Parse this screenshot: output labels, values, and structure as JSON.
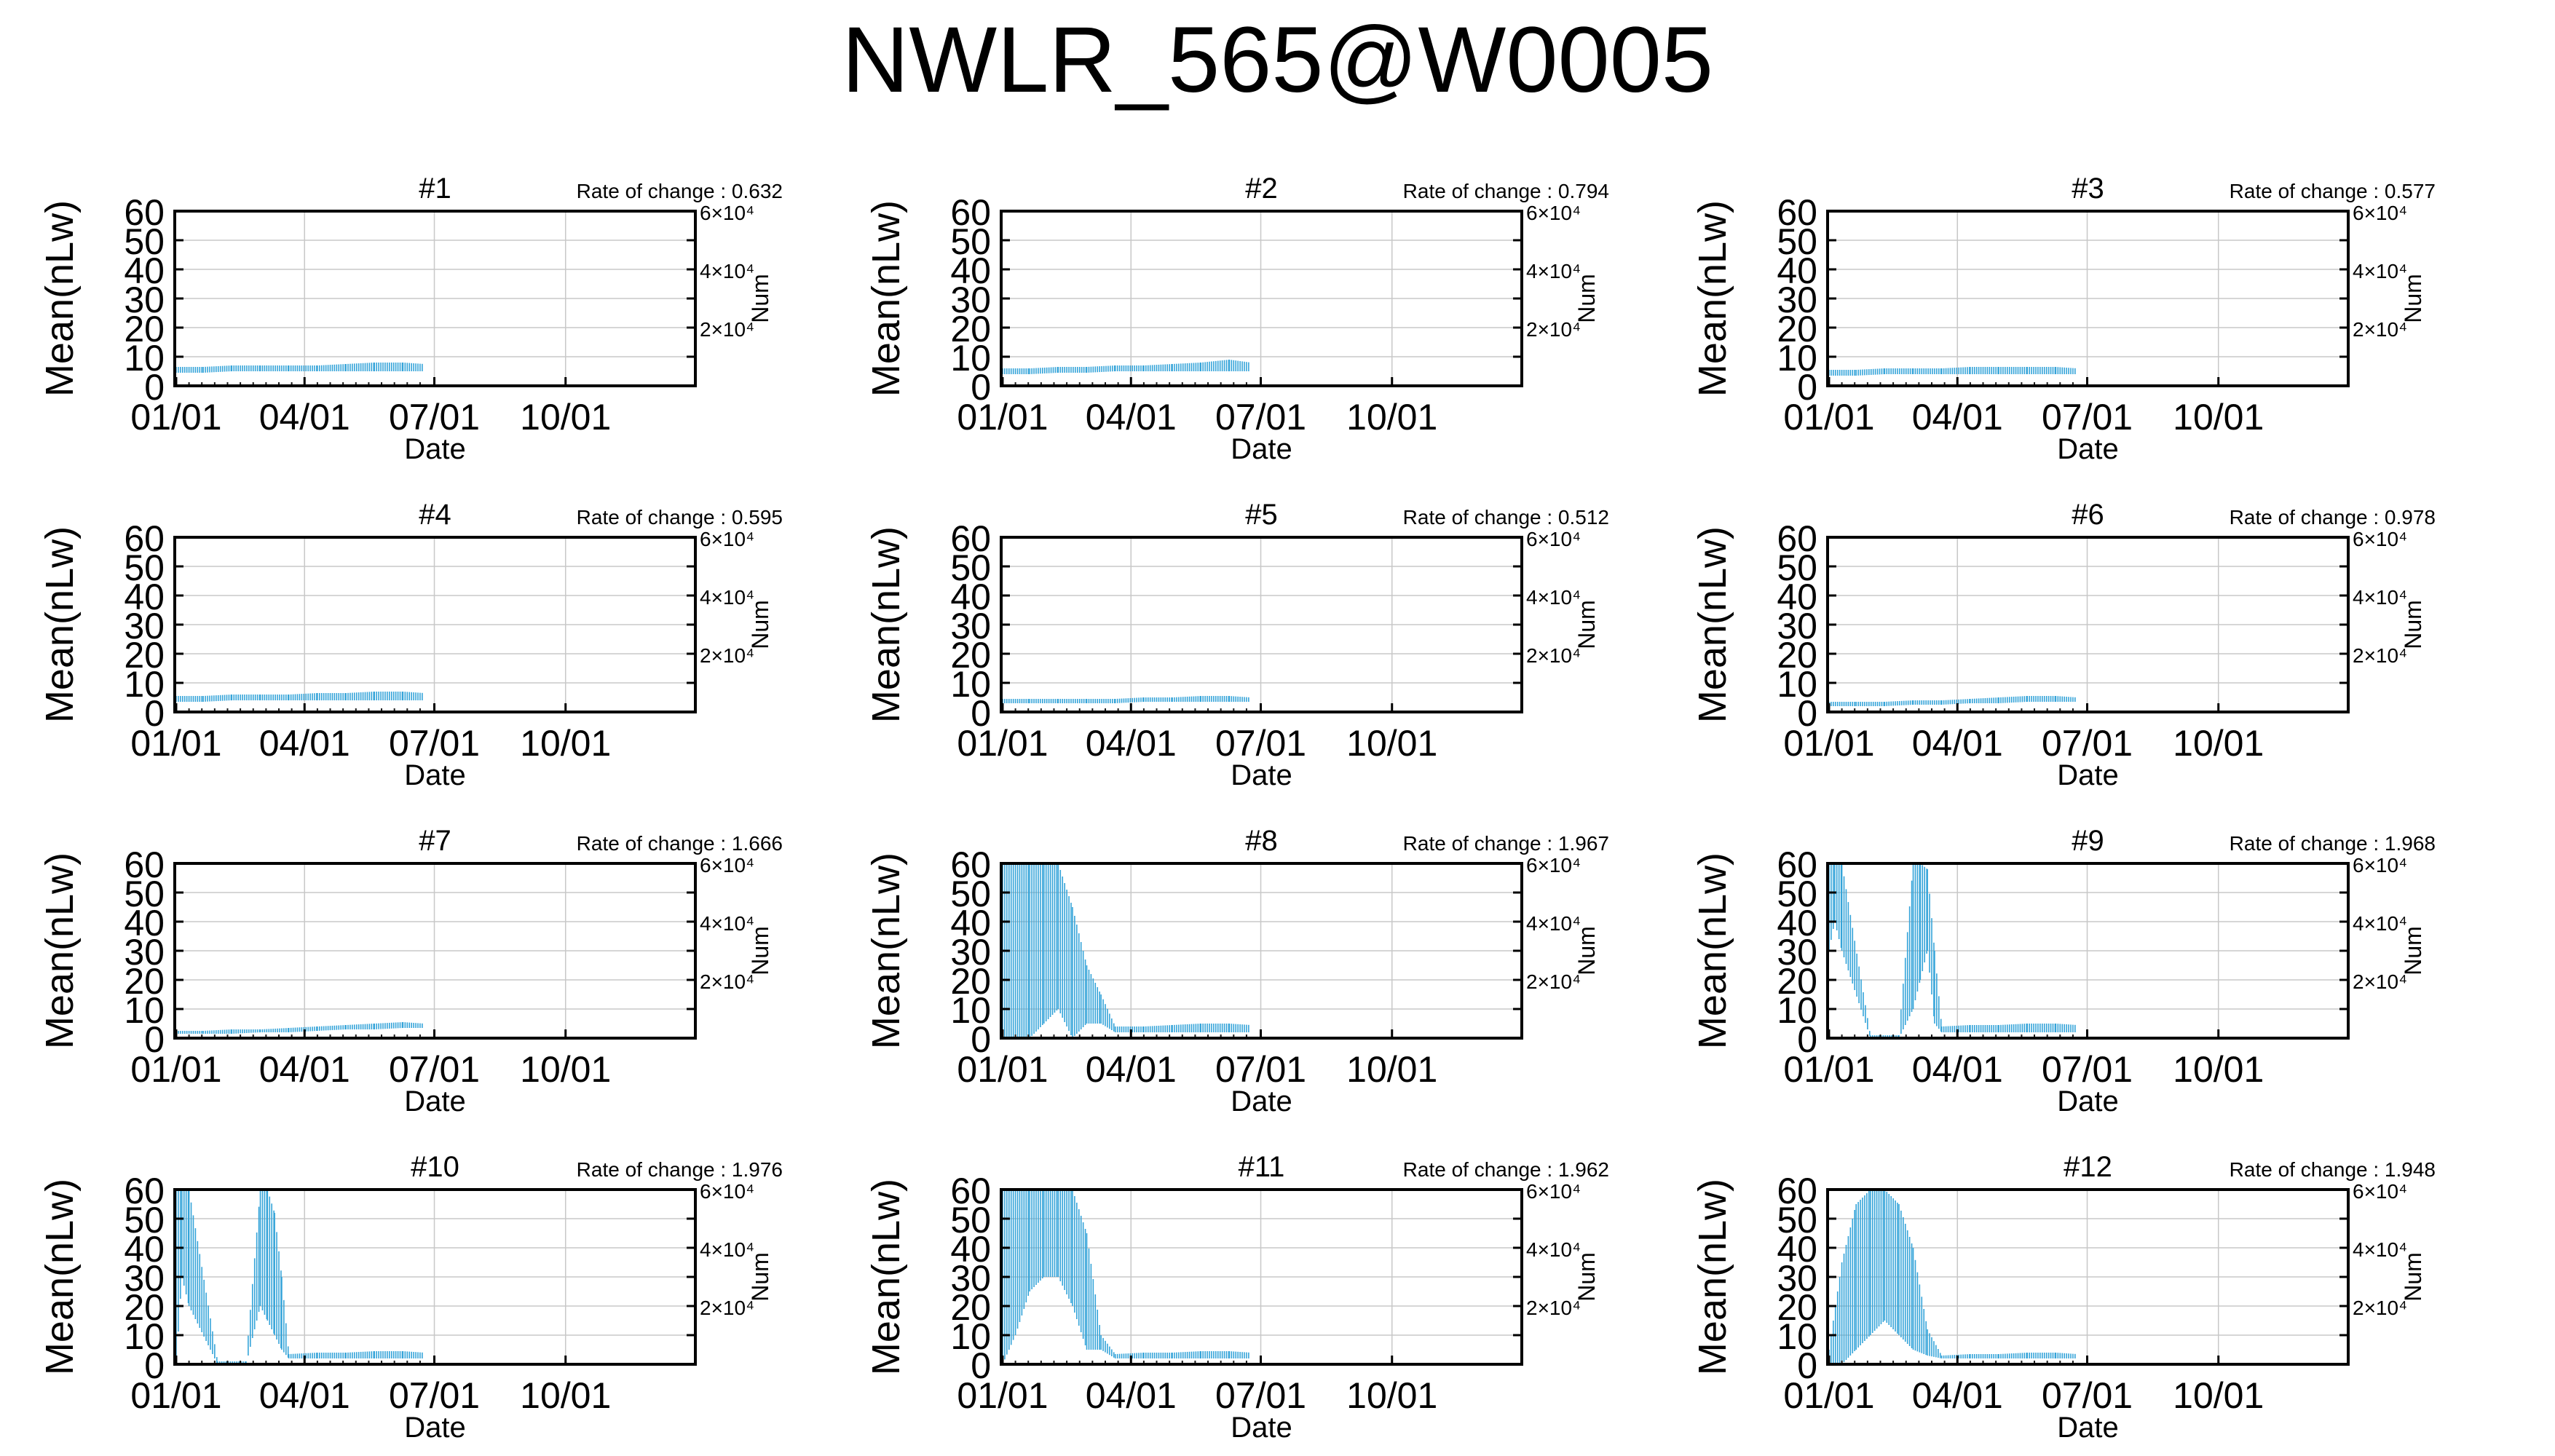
{
  "title": "NWLR_565@W0005",
  "colors": {
    "series": "#35a4d9",
    "marks": "#1a1a1a",
    "grid": "#c8c8c8",
    "axis": "#000000"
  },
  "chart_data": [
    {
      "type": "line",
      "title": "#1",
      "rate_label": "Rate of change : 0.632",
      "xlabel": "Date",
      "ylabel": "Mean(nLw)",
      "y2label": "Num",
      "xticks": [
        "01/01",
        "04/01",
        "07/01",
        "10/01"
      ],
      "yticks": [
        0,
        10,
        20,
        30,
        40,
        50,
        60
      ],
      "ylim": [
        0,
        60
      ],
      "y2ticks": [
        "2×10⁴",
        "4×10⁴",
        "6×10⁴"
      ],
      "y2lim": [
        0,
        60000
      ],
      "grid": true,
      "series": [
        {
          "values": [
            [
              1,
              4.5,
              6.5
            ],
            [
              20,
              4.5,
              6.5
            ],
            [
              40,
              5,
              7
            ],
            [
              60,
              5,
              7
            ],
            [
              80,
              5,
              7
            ],
            [
              100,
              5,
              7
            ],
            [
              120,
              5,
              7.5
            ],
            [
              140,
              5,
              8
            ],
            [
              160,
              5,
              8
            ],
            [
              175,
              5,
              7.5
            ]
          ]
        }
      ]
    },
    {
      "type": "line",
      "title": "#2",
      "rate_label": "Rate of change : 0.794",
      "xlabel": "Date",
      "ylabel": "Mean(nLw)",
      "y2label": "Num",
      "xticks": [
        "01/01",
        "04/01",
        "07/01",
        "10/01"
      ],
      "yticks": [
        0,
        10,
        20,
        30,
        40,
        50,
        60
      ],
      "ylim": [
        0,
        60
      ],
      "y2ticks": [
        "2×10⁴",
        "4×10⁴",
        "6×10⁴"
      ],
      "y2lim": [
        0,
        60000
      ],
      "grid": true,
      "series": [
        {
          "values": [
            [
              1,
              4,
              6
            ],
            [
              20,
              4,
              6
            ],
            [
              40,
              4.5,
              6.5
            ],
            [
              60,
              4.5,
              6.5
            ],
            [
              80,
              5,
              7
            ],
            [
              100,
              5,
              7
            ],
            [
              120,
              5,
              7.5
            ],
            [
              140,
              5,
              8
            ],
            [
              160,
              5,
              9
            ],
            [
              175,
              5,
              8
            ]
          ]
        }
      ]
    },
    {
      "type": "line",
      "title": "#3",
      "rate_label": "Rate of change : 0.577",
      "xlabel": "Date",
      "ylabel": "Mean(nLw)",
      "y2label": "Num",
      "xticks": [
        "01/01",
        "04/01",
        "07/01",
        "10/01"
      ],
      "yticks": [
        0,
        10,
        20,
        30,
        40,
        50,
        60
      ],
      "ylim": [
        0,
        60
      ],
      "y2ticks": [
        "2×10⁴",
        "4×10⁴",
        "6×10⁴"
      ],
      "y2lim": [
        0,
        60000
      ],
      "grid": true,
      "series": [
        {
          "values": [
            [
              1,
              3.5,
              5.5
            ],
            [
              20,
              3.5,
              5.5
            ],
            [
              40,
              4,
              6
            ],
            [
              60,
              4,
              6
            ],
            [
              80,
              4,
              6
            ],
            [
              100,
              4,
              6.5
            ],
            [
              120,
              4,
              6.5
            ],
            [
              140,
              4,
              6.5
            ],
            [
              160,
              4,
              6.5
            ],
            [
              175,
              4,
              6
            ]
          ]
        }
      ]
    },
    {
      "type": "line",
      "title": "#4",
      "rate_label": "Rate of change : 0.595",
      "xlabel": "Date",
      "ylabel": "Mean(nLw)",
      "y2label": "Num",
      "xticks": [
        "01/01",
        "04/01",
        "07/01",
        "10/01"
      ],
      "yticks": [
        0,
        10,
        20,
        30,
        40,
        50,
        60
      ],
      "ylim": [
        0,
        60
      ],
      "y2ticks": [
        "2×10⁴",
        "4×10⁴",
        "6×10⁴"
      ],
      "y2lim": [
        0,
        60000
      ],
      "grid": true,
      "series": [
        {
          "values": [
            [
              1,
              3.5,
              5.5
            ],
            [
              20,
              3.5,
              5.5
            ],
            [
              40,
              4,
              6
            ],
            [
              60,
              4,
              6
            ],
            [
              80,
              4,
              6
            ],
            [
              100,
              4,
              6.5
            ],
            [
              120,
              4,
              6.5
            ],
            [
              140,
              4,
              7
            ],
            [
              160,
              4,
              7
            ],
            [
              175,
              4,
              6.5
            ]
          ]
        }
      ]
    },
    {
      "type": "line",
      "title": "#5",
      "rate_label": "Rate of change : 0.512",
      "xlabel": "Date",
      "ylabel": "Mean(nLw)",
      "y2label": "Num",
      "xticks": [
        "01/01",
        "04/01",
        "07/01",
        "10/01"
      ],
      "yticks": [
        0,
        10,
        20,
        30,
        40,
        50,
        60
      ],
      "ylim": [
        0,
        60
      ],
      "y2ticks": [
        "2×10⁴",
        "4×10⁴",
        "6×10⁴"
      ],
      "y2lim": [
        0,
        60000
      ],
      "grid": true,
      "series": [
        {
          "values": [
            [
              1,
              3,
              4.5
            ],
            [
              20,
              3,
              4.5
            ],
            [
              40,
              3,
              4.5
            ],
            [
              60,
              3,
              4.5
            ],
            [
              80,
              3,
              4.5
            ],
            [
              100,
              3.5,
              5
            ],
            [
              120,
              3.5,
              5
            ],
            [
              140,
              3.5,
              5.5
            ],
            [
              160,
              3.5,
              5.5
            ],
            [
              175,
              3.5,
              5
            ]
          ]
        }
      ]
    },
    {
      "type": "line",
      "title": "#6",
      "rate_label": "Rate of change : 0.978",
      "xlabel": "Date",
      "ylabel": "Mean(nLw)",
      "y2label": "Num",
      "xticks": [
        "01/01",
        "04/01",
        "07/01",
        "10/01"
      ],
      "yticks": [
        0,
        10,
        20,
        30,
        40,
        50,
        60
      ],
      "ylim": [
        0,
        60
      ],
      "y2ticks": [
        "2×10⁴",
        "4×10⁴",
        "6×10⁴"
      ],
      "y2lim": [
        0,
        60000
      ],
      "grid": true,
      "series": [
        {
          "values": [
            [
              1,
              2,
              3.5
            ],
            [
              20,
              2,
              3.5
            ],
            [
              40,
              2,
              3.5
            ],
            [
              60,
              2.5,
              4
            ],
            [
              80,
              2.5,
              4
            ],
            [
              100,
              3,
              4.5
            ],
            [
              120,
              3,
              5
            ],
            [
              140,
              3.5,
              5.5
            ],
            [
              160,
              3.5,
              5.5
            ],
            [
              175,
              3.5,
              5
            ]
          ]
        }
      ]
    },
    {
      "type": "line",
      "title": "#7",
      "rate_label": "Rate of change : 1.666",
      "xlabel": "Date",
      "ylabel": "Mean(nLw)",
      "y2label": "Num",
      "xticks": [
        "01/01",
        "04/01",
        "07/01",
        "10/01"
      ],
      "yticks": [
        0,
        10,
        20,
        30,
        40,
        50,
        60
      ],
      "ylim": [
        0,
        60
      ],
      "y2ticks": [
        "2×10⁴",
        "4×10⁴",
        "6×10⁴"
      ],
      "y2lim": [
        0,
        60000
      ],
      "grid": true,
      "series": [
        {
          "values": [
            [
              1,
              1.5,
              2.5
            ],
            [
              20,
              1.5,
              2.5
            ],
            [
              40,
              1.5,
              3
            ],
            [
              60,
              2,
              3
            ],
            [
              80,
              2,
              3.5
            ],
            [
              100,
              2.5,
              4
            ],
            [
              120,
              3,
              4.5
            ],
            [
              140,
              3,
              5
            ],
            [
              160,
              3.5,
              5.5
            ],
            [
              175,
              3.5,
              5
            ]
          ]
        }
      ]
    },
    {
      "type": "line",
      "title": "#8",
      "rate_label": "Rate of change : 1.967",
      "xlabel": "Date",
      "ylabel": "Mean(nLw)",
      "y2label": "Num",
      "xticks": [
        "01/01",
        "04/01",
        "07/01",
        "10/01"
      ],
      "yticks": [
        0,
        10,
        20,
        30,
        40,
        50,
        60
      ],
      "ylim": [
        0,
        60
      ],
      "y2ticks": [
        "2×10⁴",
        "4×10⁴",
        "6×10⁴"
      ],
      "y2lim": [
        0,
        60000
      ],
      "grid": true,
      "series": [
        {
          "values": [
            [
              1,
              0,
              60
            ],
            [
              10,
              0,
              60
            ],
            [
              20,
              0,
              60
            ],
            [
              30,
              5,
              60
            ],
            [
              40,
              10,
              60
            ],
            [
              50,
              0,
              45
            ],
            [
              60,
              5,
              25
            ],
            [
              70,
              5,
              15
            ],
            [
              80,
              2,
              4
            ],
            [
              100,
              2,
              4
            ],
            [
              120,
              2,
              4.5
            ],
            [
              140,
              2,
              5
            ],
            [
              160,
              2,
              5
            ],
            [
              175,
              2,
              4.5
            ]
          ]
        }
      ]
    },
    {
      "type": "line",
      "title": "#9",
      "rate_label": "Rate of change : 1.968",
      "xlabel": "Date",
      "ylabel": "Mean(nLw)",
      "y2label": "Num",
      "xticks": [
        "01/01",
        "04/01",
        "07/01",
        "10/01"
      ],
      "yticks": [
        0,
        10,
        20,
        30,
        40,
        50,
        60
      ],
      "ylim": [
        0,
        60
      ],
      "y2ticks": [
        "2×10⁴",
        "4×10⁴",
        "6×10⁴"
      ],
      "y2lim": [
        0,
        60000
      ],
      "grid": true,
      "series": [
        {
          "values": [
            [
              1,
              30,
              60
            ],
            [
              5,
              40,
              60
            ],
            [
              10,
              30,
              60
            ],
            [
              30,
              0,
              1
            ],
            [
              50,
              0,
              1
            ],
            [
              60,
              10,
              60
            ],
            [
              65,
              20,
              60
            ],
            [
              70,
              30,
              58
            ],
            [
              75,
              5,
              30
            ],
            [
              80,
              2,
              4
            ],
            [
              100,
              2,
              4.5
            ],
            [
              120,
              2,
              4.5
            ],
            [
              140,
              2,
              5
            ],
            [
              160,
              2,
              5
            ],
            [
              175,
              2,
              4.5
            ]
          ]
        }
      ]
    },
    {
      "type": "line",
      "title": "#10",
      "rate_label": "Rate of change : 1.976",
      "xlabel": "Date",
      "ylabel": "Mean(nLw)",
      "y2label": "Num",
      "xticks": [
        "01/01",
        "04/01",
        "07/01",
        "10/01"
      ],
      "yticks": [
        0,
        10,
        20,
        30,
        40,
        50,
        60
      ],
      "ylim": [
        0,
        60
      ],
      "y2ticks": [
        "2×10⁴",
        "4×10⁴",
        "6×10⁴"
      ],
      "y2lim": [
        0,
        60000
      ],
      "grid": true,
      "series": [
        {
          "values": [
            [
              1,
              0,
              60
            ],
            [
              5,
              30,
              60
            ],
            [
              10,
              20,
              60
            ],
            [
              30,
              0,
              1
            ],
            [
              50,
              0,
              1
            ],
            [
              60,
              20,
              60
            ],
            [
              65,
              15,
              60
            ],
            [
              70,
              10,
              52
            ],
            [
              75,
              5,
              30
            ],
            [
              80,
              2,
              3.5
            ],
            [
              100,
              2,
              4
            ],
            [
              120,
              2,
              4
            ],
            [
              140,
              2,
              4.5
            ],
            [
              160,
              2,
              4.5
            ],
            [
              175,
              2,
              4
            ]
          ]
        }
      ]
    },
    {
      "type": "line",
      "title": "#11",
      "rate_label": "Rate of change : 1.962",
      "xlabel": "Date",
      "ylabel": "Mean(nLw)",
      "y2label": "Num",
      "xticks": [
        "01/01",
        "04/01",
        "07/01",
        "10/01"
      ],
      "yticks": [
        0,
        10,
        20,
        30,
        40,
        50,
        60
      ],
      "ylim": [
        0,
        60
      ],
      "y2ticks": [
        "2×10⁴",
        "4×10⁴",
        "6×10⁴"
      ],
      "y2lim": [
        0,
        60000
      ],
      "grid": true,
      "series": [
        {
          "values": [
            [
              1,
              0,
              60
            ],
            [
              10,
              10,
              60
            ],
            [
              20,
              25,
              60
            ],
            [
              30,
              30,
              60
            ],
            [
              40,
              30,
              60
            ],
            [
              50,
              20,
              60
            ],
            [
              60,
              5,
              45
            ],
            [
              70,
              5,
              10
            ],
            [
              80,
              2,
              3.5
            ],
            [
              100,
              2,
              4
            ],
            [
              120,
              2,
              4
            ],
            [
              140,
              2,
              4.5
            ],
            [
              160,
              2,
              4.5
            ],
            [
              175,
              2,
              4
            ]
          ]
        }
      ]
    },
    {
      "type": "line",
      "title": "#12",
      "rate_label": "Rate of change : 1.948",
      "xlabel": "Date",
      "ylabel": "Mean(nLw)",
      "y2label": "Num",
      "xticks": [
        "01/01",
        "04/01",
        "07/01",
        "10/01"
      ],
      "yticks": [
        0,
        10,
        20,
        30,
        40,
        50,
        60
      ],
      "ylim": [
        0,
        60
      ],
      "y2ticks": [
        "2×10⁴",
        "4×10⁴",
        "6×10⁴"
      ],
      "y2lim": [
        0,
        60000
      ],
      "grid": true,
      "series": [
        {
          "values": [
            [
              1,
              0,
              5
            ],
            [
              10,
              0,
              35
            ],
            [
              20,
              5,
              55
            ],
            [
              30,
              10,
              60
            ],
            [
              40,
              15,
              60
            ],
            [
              50,
              10,
              55
            ],
            [
              60,
              5,
              40
            ],
            [
              70,
              3,
              12
            ],
            [
              80,
              2,
              3
            ],
            [
              100,
              2,
              3.5
            ],
            [
              120,
              2,
              3.5
            ],
            [
              140,
              2,
              4
            ],
            [
              160,
              2,
              4
            ],
            [
              175,
              2,
              3.5
            ]
          ]
        }
      ]
    }
  ]
}
